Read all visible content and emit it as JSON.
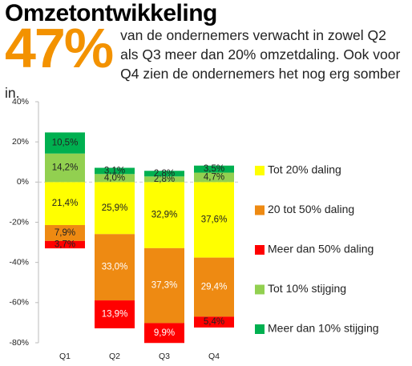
{
  "chart_data": {
    "type": "stacked-bar",
    "title": "Omzetontwikkeling",
    "highlight": "47%",
    "subtitle": "van de ondernemers verwacht in zowel Q2 als Q3 meer dan 20% omzetdaling. Ook voor Q4 zien de ondernemers het nog erg somber in.",
    "categories": [
      "Q1",
      "Q2",
      "Q3",
      "Q4"
    ],
    "series": [
      {
        "name": "Tot 20% daling",
        "color": "#ffff00",
        "values": [
          -21.4,
          -25.9,
          -32.9,
          -37.6
        ],
        "value_labels": [
          "21,4%",
          "25,9%",
          "32,9%",
          "37,6%"
        ]
      },
      {
        "name": "20 tot 50% daling",
        "color": "#ee8a12",
        "values": [
          -7.9,
          -33.0,
          -37.3,
          -29.4
        ],
        "value_labels": [
          "7,9%",
          "33,0%",
          "37,3%",
          "29,4%"
        ]
      },
      {
        "name": "Meer dan 50% daling",
        "color": "#ff0000",
        "values": [
          -3.7,
          -13.9,
          -9.9,
          -5.4
        ],
        "value_labels": [
          "3,7%",
          "13,9%",
          "9,9%",
          "5,4%"
        ]
      },
      {
        "name": "Tot 10% stijging",
        "color": "#92d050",
        "values": [
          14.2,
          4.0,
          2.8,
          4.7
        ],
        "value_labels": [
          "14,2%",
          "4,0%",
          "2,8%",
          "4,7%"
        ]
      },
      {
        "name": "Meer dan 10% stijging",
        "color": "#00b050",
        "values": [
          10.5,
          3.1,
          2.8,
          3.5
        ],
        "value_labels": [
          "10,5%",
          "3,1%",
          "2,8%",
          "3,5%"
        ]
      }
    ],
    "ylim": [
      -80,
      40
    ],
    "yticks": [
      {
        "value": 40,
        "label": "40%"
      },
      {
        "value": 20,
        "label": "20%"
      },
      {
        "value": 0,
        "label": "0%"
      },
      {
        "value": -20,
        "label": "-20%"
      },
      {
        "value": -40,
        "label": "-40%"
      },
      {
        "value": -60,
        "label": "-60%"
      },
      {
        "value": -80,
        "label": "-80%"
      }
    ],
    "legend": "right"
  }
}
